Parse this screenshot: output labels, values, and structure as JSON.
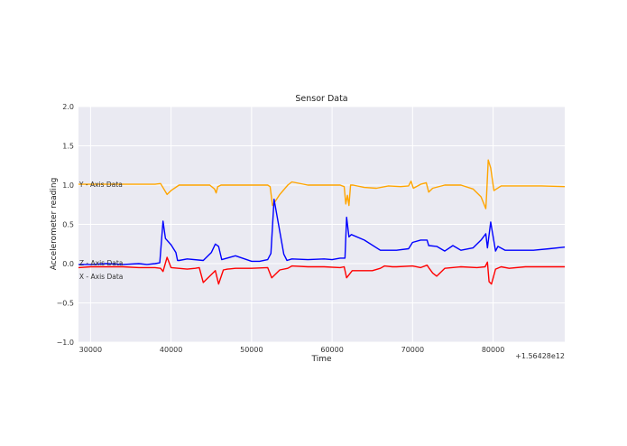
{
  "chart_data": {
    "type": "line",
    "title": "Sensor Data",
    "xlabel": "Time",
    "ylabel": "Accelerometer reading",
    "x_offset_label": "+1.56428e12",
    "xlim": [
      28500,
      88900
    ],
    "ylim": [
      -1.0,
      2.0
    ],
    "grid": true,
    "x_ticks": [
      30000,
      40000,
      50000,
      60000,
      70000,
      80000
    ],
    "y_ticks": [
      -1.0,
      -0.5,
      0.0,
      0.5,
      1.0,
      1.5,
      2.0
    ],
    "x_tick_labels": [
      "30000",
      "40000",
      "50000",
      "60000",
      "70000",
      "80000"
    ],
    "y_tick_labels": [
      "−1.0",
      "−0.5",
      "0.0",
      "0.5",
      "1.0",
      "1.5",
      "2.0"
    ],
    "annotations": [
      {
        "text": "Y - Axis Data",
        "x": 28600,
        "y": 1.01
      },
      {
        "text": "Z - Axis Data",
        "x": 28600,
        "y": 0.01
      },
      {
        "text": "X - Axis Data",
        "x": 28600,
        "y": -0.16
      }
    ],
    "series": [
      {
        "name": "Y - Axis Data",
        "color": "#ffa500",
        "x": [
          28500,
          30000,
          33000,
          36000,
          38000,
          38700,
          39100,
          39500,
          40000,
          41000,
          42500,
          44000,
          44800,
          45400,
          45600,
          45800,
          46200,
          48000,
          50000,
          52000,
          52300,
          52600,
          53500,
          54500,
          55000,
          57000,
          59000,
          61000,
          61500,
          61700,
          61900,
          62100,
          62300,
          62600,
          64000,
          65500,
          67000,
          68500,
          69500,
          69800,
          70100,
          71000,
          71700,
          72000,
          72500,
          74000,
          76000,
          77500,
          78500,
          79100,
          79200,
          79400,
          79700,
          80100,
          81000,
          82500,
          84000,
          86000,
          88900
        ],
        "values": [
          1.01,
          1.01,
          1.01,
          1.01,
          1.01,
          1.02,
          0.95,
          0.88,
          0.93,
          1.0,
          1.0,
          1.0,
          1.0,
          0.95,
          0.9,
          0.98,
          1.0,
          1.0,
          1.0,
          1.0,
          0.98,
          0.74,
          0.88,
          1.0,
          1.04,
          1.0,
          1.0,
          1.0,
          0.98,
          0.76,
          0.87,
          0.74,
          1.0,
          1.0,
          0.97,
          0.96,
          0.99,
          0.98,
          0.99,
          1.05,
          0.96,
          1.01,
          1.03,
          0.91,
          0.96,
          1.0,
          1.0,
          0.95,
          0.85,
          0.7,
          0.88,
          1.32,
          1.22,
          0.93,
          0.99,
          0.99,
          0.99,
          0.99,
          0.98
        ]
      },
      {
        "name": "Z - Axis Data",
        "color": "#0000ff",
        "x": [
          28500,
          30000,
          32000,
          34000,
          36000,
          37000,
          38000,
          38600,
          39000,
          39300,
          40000,
          40600,
          40800,
          41000,
          42000,
          44000,
          45000,
          45500,
          45900,
          46300,
          48000,
          50000,
          51000,
          52000,
          52400,
          52800,
          54000,
          54400,
          55000,
          57000,
          59000,
          60000,
          61000,
          61600,
          61800,
          62100,
          62400,
          64000,
          66000,
          68000,
          69500,
          70000,
          71000,
          71800,
          72000,
          73000,
          74000,
          75000,
          76000,
          77500,
          78500,
          79100,
          79300,
          79700,
          80300,
          80600,
          81500,
          83000,
          85000,
          87000,
          88900
        ],
        "values": [
          -0.01,
          -0.01,
          0.0,
          -0.01,
          0.0,
          -0.01,
          0.0,
          0.01,
          0.54,
          0.32,
          0.24,
          0.14,
          0.04,
          0.04,
          0.06,
          0.04,
          0.14,
          0.25,
          0.22,
          0.05,
          0.1,
          0.03,
          0.03,
          0.05,
          0.13,
          0.82,
          0.12,
          0.04,
          0.06,
          0.05,
          0.06,
          0.05,
          0.07,
          0.07,
          0.59,
          0.34,
          0.37,
          0.3,
          0.17,
          0.17,
          0.19,
          0.27,
          0.3,
          0.3,
          0.23,
          0.22,
          0.16,
          0.23,
          0.17,
          0.2,
          0.3,
          0.38,
          0.2,
          0.53,
          0.16,
          0.22,
          0.17,
          0.17,
          0.17,
          0.19,
          0.21
        ]
      },
      {
        "name": "X - Axis Data",
        "color": "#ff0000",
        "x": [
          28500,
          30000,
          32000,
          34000,
          36000,
          38000,
          38700,
          39000,
          39500,
          40000,
          42000,
          43000,
          43500,
          44000,
          45500,
          45900,
          46500,
          47000,
          48000,
          50000,
          52000,
          52500,
          53500,
          54500,
          55000,
          57000,
          59000,
          61000,
          61500,
          61800,
          62500,
          63500,
          65000,
          66000,
          66500,
          67500,
          68000,
          70000,
          71000,
          71800,
          72000,
          72500,
          73000,
          74000,
          76000,
          78000,
          79000,
          79300,
          79500,
          79800,
          80300,
          81000,
          82000,
          84000,
          86000,
          88900
        ],
        "values": [
          -0.05,
          -0.04,
          -0.04,
          -0.04,
          -0.05,
          -0.05,
          -0.06,
          -0.1,
          0.08,
          -0.05,
          -0.07,
          -0.06,
          -0.05,
          -0.24,
          -0.09,
          -0.26,
          -0.08,
          -0.07,
          -0.06,
          -0.06,
          -0.05,
          -0.18,
          -0.08,
          -0.06,
          -0.03,
          -0.04,
          -0.04,
          -0.05,
          -0.04,
          -0.18,
          -0.09,
          -0.09,
          -0.09,
          -0.06,
          -0.03,
          -0.04,
          -0.04,
          -0.03,
          -0.05,
          -0.02,
          -0.05,
          -0.12,
          -0.16,
          -0.06,
          -0.04,
          -0.05,
          -0.04,
          0.02,
          -0.23,
          -0.26,
          -0.07,
          -0.04,
          -0.06,
          -0.04,
          -0.04,
          -0.04
        ]
      }
    ]
  }
}
